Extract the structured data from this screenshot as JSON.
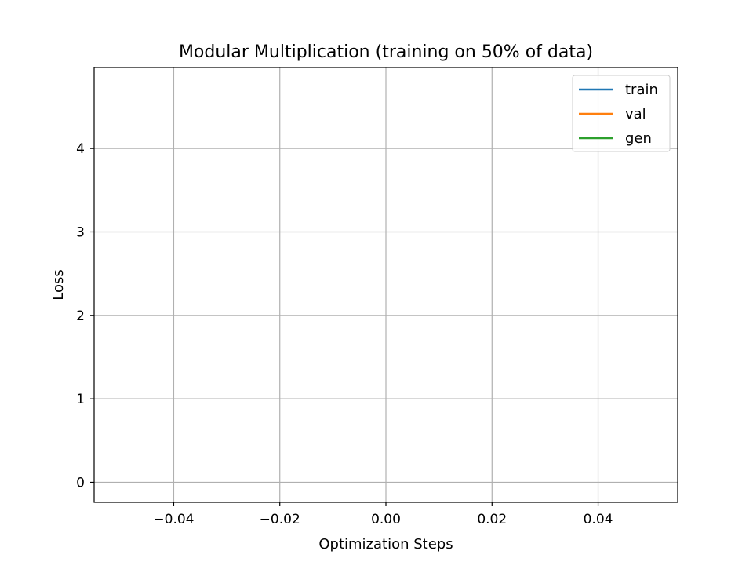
{
  "chart_data": {
    "type": "line",
    "title": "Modular Multiplication (training on 50% of data)",
    "xlabel": "Optimization Steps",
    "ylabel": "Loss",
    "xlim": [
      -0.055,
      0.055
    ],
    "ylim": [
      -0.24,
      4.97
    ],
    "x_ticks": [
      -0.04,
      -0.02,
      0.0,
      0.02,
      0.04
    ],
    "x_tick_labels": [
      "−0.04",
      "−0.02",
      "0.00",
      "0.02",
      "0.04"
    ],
    "y_ticks": [
      0,
      1,
      2,
      3,
      4
    ],
    "y_tick_labels": [
      "0",
      "1",
      "2",
      "3",
      "4"
    ],
    "grid": true,
    "legend_position": "top-right",
    "series": [
      {
        "name": "train",
        "color": "#1f77b4",
        "x": [],
        "y": []
      },
      {
        "name": "val",
        "color": "#ff7f0e",
        "x": [],
        "y": []
      },
      {
        "name": "gen",
        "color": "#2ca02c",
        "x": [],
        "y": []
      }
    ]
  }
}
